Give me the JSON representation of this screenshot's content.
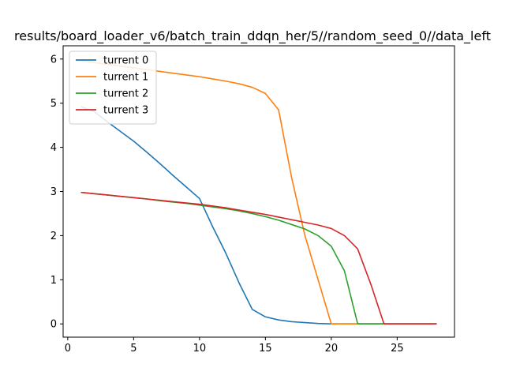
{
  "chart_data": {
    "type": "line",
    "title": "results/board_loader_v6/batch_train_ddqn_her/5//random_seed_0//data_left",
    "xlabel": "",
    "ylabel": "",
    "xlim": [
      -0.35,
      29.35
    ],
    "ylim": [
      -0.3,
      6.3
    ],
    "xticks": [
      0,
      5,
      10,
      15,
      20,
      25
    ],
    "yticks": [
      0,
      1,
      2,
      3,
      4,
      5,
      6
    ],
    "grid": false,
    "legend_position": "top-left",
    "series": [
      {
        "name": "turrent 0",
        "color": "#1f77b4",
        "x": [
          1,
          2,
          3,
          4,
          5,
          6,
          7,
          8,
          9,
          10,
          11,
          12,
          13,
          14,
          15,
          16,
          17,
          18,
          19,
          20,
          21,
          22,
          23,
          24,
          25,
          26,
          27,
          28
        ],
        "y": [
          4.92,
          4.81,
          4.58,
          4.36,
          4.14,
          3.89,
          3.63,
          3.36,
          3.1,
          2.84,
          2.2,
          1.6,
          0.93,
          0.33,
          0.16,
          0.09,
          0.05,
          0.03,
          0.01,
          0,
          0,
          0,
          0,
          0,
          0,
          0,
          0,
          0
        ]
      },
      {
        "name": "turrent 1",
        "color": "#ff7f0e",
        "x": [
          1,
          2,
          3,
          4,
          5,
          6,
          7,
          8,
          9,
          10,
          11,
          12,
          13,
          14,
          15,
          16,
          17,
          18,
          19,
          20,
          21,
          22,
          23,
          24,
          25,
          26,
          27,
          28
        ],
        "y": [
          5.96,
          5.92,
          5.88,
          5.84,
          5.8,
          5.76,
          5.72,
          5.68,
          5.64,
          5.6,
          5.55,
          5.5,
          5.44,
          5.36,
          5.22,
          4.85,
          3.3,
          2.0,
          1.0,
          0.0,
          0,
          0,
          0,
          0,
          0,
          0,
          0,
          0
        ]
      },
      {
        "name": "turrent 2",
        "color": "#2ca02c",
        "x": [
          1,
          2,
          3,
          4,
          5,
          6,
          7,
          8,
          9,
          10,
          11,
          12,
          13,
          14,
          15,
          16,
          17,
          18,
          19,
          20,
          21,
          22,
          23,
          24,
          25,
          26,
          27,
          28
        ],
        "y": [
          2.98,
          2.95,
          2.92,
          2.89,
          2.86,
          2.83,
          2.79,
          2.76,
          2.73,
          2.69,
          2.65,
          2.61,
          2.56,
          2.5,
          2.43,
          2.35,
          2.25,
          2.15,
          2.0,
          1.76,
          1.2,
          0,
          0,
          0,
          0,
          0,
          0,
          0
        ]
      },
      {
        "name": "turrent 3",
        "color": "#d62728",
        "x": [
          1,
          2,
          3,
          4,
          5,
          6,
          7,
          8,
          9,
          10,
          11,
          12,
          13,
          14,
          15,
          16,
          17,
          18,
          19,
          20,
          21,
          22,
          23,
          24,
          25,
          26,
          27,
          28
        ],
        "y": [
          2.98,
          2.95,
          2.92,
          2.89,
          2.86,
          2.83,
          2.8,
          2.77,
          2.74,
          2.71,
          2.67,
          2.63,
          2.58,
          2.53,
          2.48,
          2.42,
          2.36,
          2.3,
          2.24,
          2.16,
          2.0,
          1.7,
          0.9,
          0,
          0,
          0,
          0,
          0
        ]
      }
    ]
  }
}
